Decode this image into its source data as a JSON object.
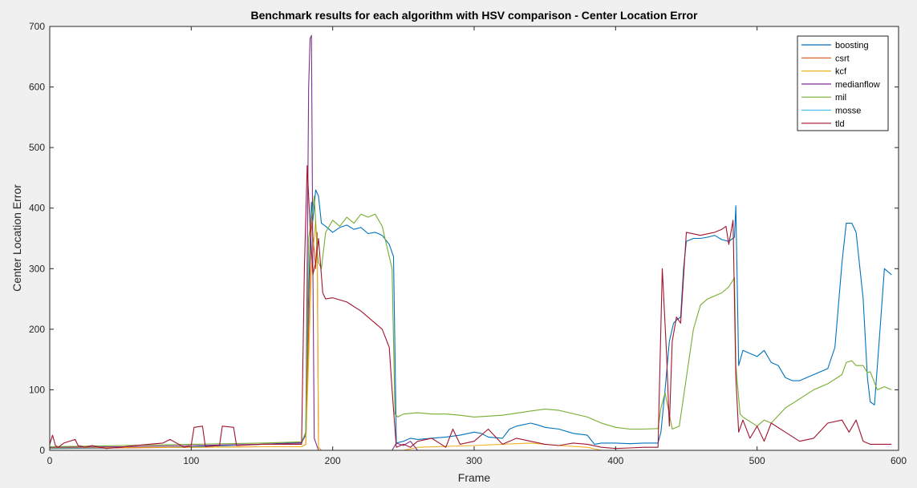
{
  "chart_data": {
    "type": "line",
    "title": "Benchmark results for each algorithm with HSV comparison - Center Location Error",
    "xlabel": "Frame",
    "ylabel": "Center Location Error",
    "xlim": [
      0,
      600
    ],
    "ylim": [
      0,
      700
    ],
    "xticks": [
      0,
      100,
      200,
      300,
      400,
      500,
      600
    ],
    "yticks": [
      0,
      100,
      200,
      300,
      400,
      500,
      600,
      700
    ],
    "grid": false,
    "legend_position": "top-right",
    "series": [
      {
        "name": "boosting",
        "color": "#0072BD",
        "x": [
          0,
          50,
          100,
          150,
          178,
          181,
          183,
          185,
          186,
          188,
          190,
          192,
          195,
          200,
          205,
          210,
          215,
          220,
          225,
          230,
          235,
          240,
          243,
          245,
          250,
          255,
          260,
          270,
          280,
          290,
          300,
          305,
          310,
          320,
          325,
          330,
          340,
          345,
          350,
          360,
          370,
          380,
          385,
          390,
          400,
          410,
          420,
          430,
          432,
          435,
          438,
          441,
          443,
          446,
          448,
          450,
          455,
          460,
          465,
          470,
          475,
          480,
          484,
          485,
          487,
          490,
          495,
          500,
          505,
          510,
          515,
          520,
          525,
          530,
          535,
          540,
          545,
          550,
          555,
          560,
          563,
          567,
          570,
          575,
          578,
          580,
          583,
          586,
          590,
          595
        ],
        "y": [
          3,
          4,
          6,
          10,
          13,
          25,
          260,
          410,
          380,
          430,
          420,
          375,
          370,
          360,
          368,
          372,
          365,
          368,
          358,
          360,
          355,
          340,
          320,
          12,
          15,
          20,
          18,
          20,
          22,
          25,
          30,
          28,
          22,
          20,
          35,
          40,
          45,
          42,
          38,
          35,
          28,
          25,
          10,
          12,
          12,
          11,
          12,
          12,
          30,
          100,
          180,
          210,
          215,
          220,
          300,
          345,
          350,
          350,
          352,
          355,
          348,
          345,
          352,
          404,
          140,
          165,
          160,
          155,
          165,
          145,
          140,
          120,
          115,
          115,
          120,
          125,
          130,
          135,
          170,
          310,
          375,
          375,
          360,
          250,
          120,
          80,
          75,
          170,
          300,
          290
        ]
      },
      {
        "name": "csrt",
        "color": "#D95319",
        "x": [
          0,
          50,
          100,
          150,
          178,
          181,
          183,
          185,
          187,
          188,
          189,
          190,
          192,
          250,
          300,
          350,
          400,
          450,
          500,
          550,
          595
        ],
        "y": [
          5,
          4,
          5,
          6,
          6,
          10,
          200,
          380,
          330,
          300,
          360,
          5,
          0,
          0,
          0,
          0,
          0,
          0,
          0,
          0,
          0
        ]
      },
      {
        "name": "kcf",
        "color": "#EDB120",
        "x": [
          0,
          50,
          100,
          150,
          178,
          181,
          183,
          185,
          187,
          188,
          189,
          190,
          192,
          250,
          260,
          300,
          320,
          340,
          360,
          380,
          390,
          430,
          500,
          595
        ],
        "y": [
          4,
          5,
          5,
          6,
          6,
          10,
          150,
          300,
          350,
          380,
          330,
          5,
          0,
          0,
          5,
          8,
          10,
          12,
          8,
          5,
          0,
          0,
          0,
          0
        ]
      },
      {
        "name": "medianflow",
        "color": "#7E2F8E",
        "x": [
          0,
          50,
          100,
          150,
          178,
          181,
          182,
          183,
          184,
          185,
          186,
          187,
          190,
          200,
          242,
          245,
          250,
          255,
          260,
          300,
          400,
          500,
          595
        ],
        "y": [
          5,
          6,
          8,
          10,
          12,
          30,
          300,
          600,
          680,
          685,
          300,
          20,
          0,
          0,
          0,
          12,
          8,
          15,
          0,
          0,
          0,
          0,
          0
        ]
      },
      {
        "name": "mil",
        "color": "#77AC30",
        "x": [
          0,
          50,
          100,
          150,
          178,
          181,
          183,
          185,
          187,
          189,
          190,
          192,
          195,
          200,
          205,
          210,
          215,
          220,
          225,
          230,
          235,
          240,
          242,
          244,
          246,
          250,
          260,
          270,
          280,
          290,
          300,
          320,
          340,
          350,
          360,
          380,
          390,
          400,
          410,
          420,
          430,
          432,
          435,
          440,
          445,
          450,
          455,
          460,
          465,
          470,
          475,
          480,
          484,
          485,
          488,
          490,
          500,
          505,
          510,
          520,
          530,
          540,
          550,
          560,
          563,
          567,
          570,
          575,
          578,
          580,
          585,
          590,
          595
        ],
        "y": [
          6,
          8,
          10,
          12,
          14,
          30,
          350,
          380,
          420,
          330,
          310,
          300,
          360,
          380,
          370,
          385,
          375,
          390,
          385,
          390,
          370,
          320,
          300,
          60,
          55,
          60,
          62,
          60,
          60,
          58,
          55,
          58,
          65,
          68,
          66,
          55,
          45,
          38,
          35,
          35,
          36,
          70,
          95,
          35,
          40,
          120,
          200,
          240,
          250,
          255,
          260,
          270,
          285,
          140,
          60,
          55,
          40,
          50,
          45,
          70,
          85,
          100,
          110,
          125,
          145,
          148,
          140,
          140,
          128,
          130,
          100,
          105,
          100
        ]
      },
      {
        "name": "mosse",
        "color": "#4DBEEE",
        "x": [
          0,
          100,
          200,
          300,
          400,
          500,
          595
        ],
        "y": [
          0,
          0,
          0,
          0,
          0,
          0,
          0
        ]
      },
      {
        "name": "tld",
        "color": "#A2142F",
        "x": [
          0,
          2,
          4,
          6,
          10,
          18,
          20,
          25,
          30,
          35,
          40,
          50,
          60,
          70,
          80,
          85,
          95,
          100,
          102,
          108,
          110,
          120,
          122,
          130,
          132,
          150,
          178,
          180,
          182,
          184,
          186,
          188,
          190,
          193,
          195,
          200,
          210,
          220,
          230,
          235,
          240,
          242,
          245,
          250,
          255,
          260,
          270,
          280,
          285,
          290,
          300,
          310,
          320,
          330,
          340,
          350,
          360,
          370,
          380,
          390,
          400,
          410,
          420,
          430,
          433,
          436,
          438,
          440,
          443,
          446,
          450,
          460,
          470,
          475,
          478,
          480,
          483,
          485,
          487,
          490,
          495,
          500,
          505,
          510,
          520,
          530,
          540,
          550,
          560,
          565,
          570,
          575,
          580,
          590,
          595
        ],
        "y": [
          10,
          25,
          8,
          5,
          12,
          18,
          8,
          5,
          8,
          5,
          3,
          5,
          8,
          10,
          12,
          18,
          5,
          8,
          38,
          40,
          6,
          8,
          40,
          38,
          8,
          10,
          10,
          300,
          470,
          370,
          290,
          310,
          350,
          260,
          250,
          252,
          245,
          230,
          210,
          200,
          170,
          100,
          5,
          10,
          5,
          15,
          20,
          5,
          35,
          10,
          15,
          35,
          10,
          20,
          15,
          10,
          8,
          12,
          10,
          5,
          3,
          4,
          5,
          5,
          300,
          160,
          40,
          180,
          220,
          210,
          360,
          355,
          360,
          365,
          370,
          340,
          380,
          120,
          30,
          50,
          20,
          40,
          15,
          45,
          30,
          15,
          20,
          45,
          50,
          30,
          50,
          15,
          10,
          10,
          10
        ]
      }
    ]
  }
}
